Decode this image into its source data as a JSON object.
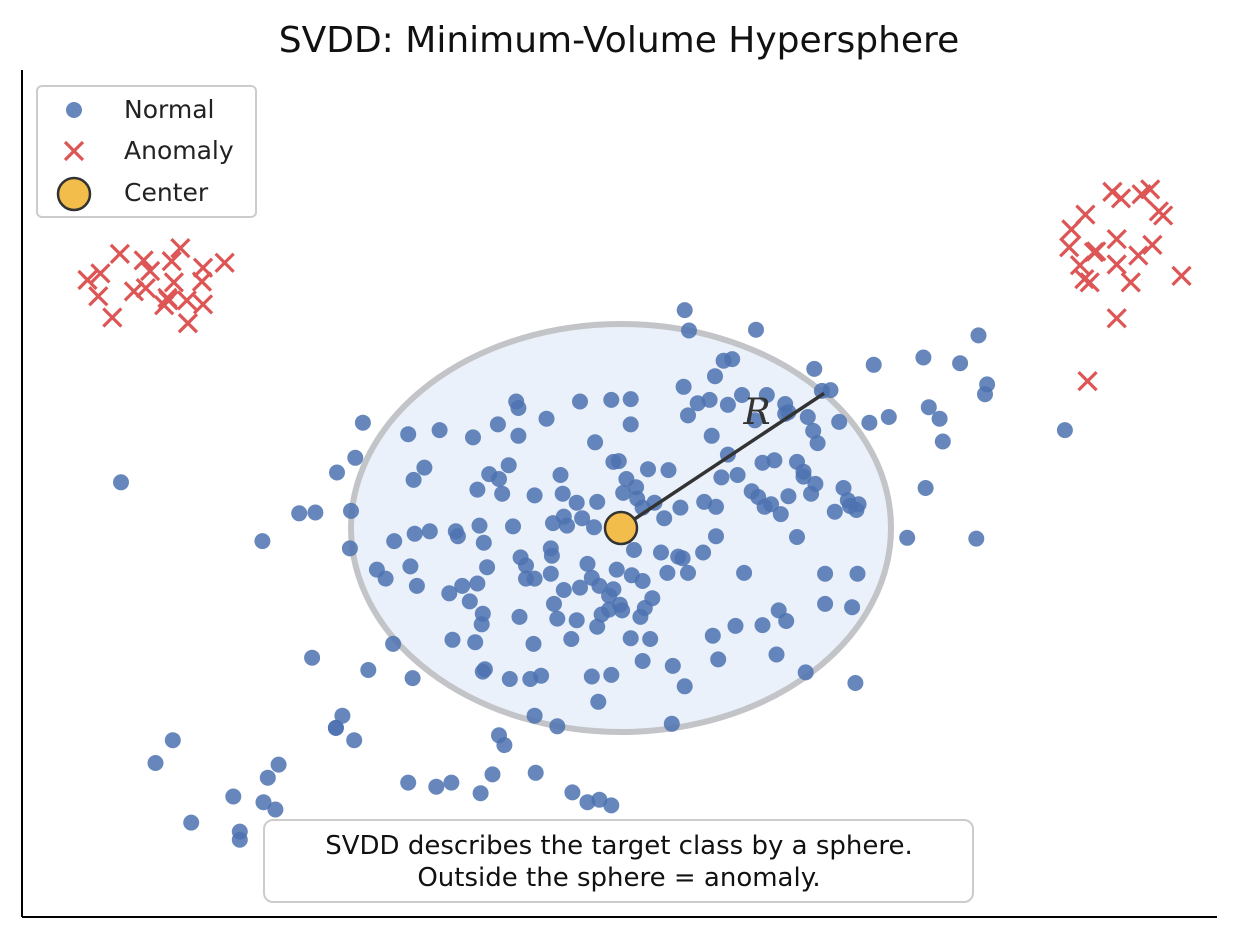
{
  "chart_data": {
    "type": "scatter",
    "title": "SVDD: Minimum-Volume Hypersphere",
    "xlabel": "",
    "ylabel": "",
    "xlim": [
      -5.5,
      5.5
    ],
    "ylim": [
      -5.5,
      5.5
    ],
    "axes_ticks": "none",
    "grid": false,
    "legend_position": "top-left",
    "colors": {
      "normal": "#4c72b0",
      "anomaly": "#dd5555",
      "center": "#f2bd4a",
      "sphere_fill": "#eaf1fa",
      "sphere_edge": "#c2c4c7",
      "radius": "#333333"
    },
    "legend": [
      {
        "label": "Normal",
        "marker": "circle",
        "series": "normal"
      },
      {
        "label": "Anomaly",
        "marker": "x",
        "series": "anomaly"
      },
      {
        "label": "Center",
        "marker": "big-circle",
        "series": "center"
      }
    ],
    "center": [
      0.0,
      0.0
    ],
    "radius": 2.5,
    "radius_label": "R",
    "radius_end": [
      1.88,
      1.65
    ],
    "note_lines": [
      "SVDD describes the target class by a sphere.",
      "Outside the sphere = anomaly."
    ],
    "series": [
      {
        "name": "Normal",
        "points": [
          [
            0.59,
            2.67
          ],
          [
            1.25,
            2.43
          ],
          [
            2.34,
            2.0
          ],
          [
            1.79,
            1.95
          ],
          [
            0.58,
            1.73
          ],
          [
            0.87,
            1.86
          ],
          [
            -0.97,
            1.55
          ],
          [
            -0.69,
            1.34
          ],
          [
            -0.09,
            1.57
          ],
          [
            -0.38,
            1.55
          ],
          [
            0.09,
            1.58
          ],
          [
            0.09,
            1.27
          ],
          [
            -0.95,
            1.13
          ],
          [
            -0.24,
            1.05
          ],
          [
            -1.04,
            0.77
          ],
          [
            -1.22,
            0.66
          ],
          [
            -0.56,
            0.65
          ],
          [
            0.05,
            0.6
          ],
          [
            -0.07,
            0.81
          ],
          [
            -0.02,
            0.82
          ],
          [
            0.25,
            0.72
          ],
          [
            0.44,
            0.71
          ],
          [
            -1.13,
            0.6
          ],
          [
            -1.33,
            0.47
          ],
          [
            -1.1,
            0.42
          ],
          [
            -0.8,
            0.4
          ],
          [
            -0.54,
            0.42
          ],
          [
            -0.41,
            0.31
          ],
          [
            -0.22,
            0.32
          ],
          [
            0.02,
            0.43
          ],
          [
            0.14,
            0.5
          ],
          [
            0.15,
            0.36
          ],
          [
            0.31,
            0.31
          ],
          [
            0.55,
            0.25
          ],
          [
            0.77,
            0.32
          ],
          [
            0.88,
            0.26
          ],
          [
            -0.5,
            0.03
          ],
          [
            -0.63,
            0.06
          ],
          [
            -0.53,
            0.14
          ],
          [
            -0.36,
            0.12
          ],
          [
            -0.25,
            0.01
          ],
          [
            -0.06,
            0.04
          ],
          [
            0.2,
            0.25
          ],
          [
            0.4,
            0.12
          ],
          [
            -1.0,
            0.02
          ],
          [
            -1.31,
            0.03
          ],
          [
            -1.53,
            -0.04
          ],
          [
            -1.77,
            -0.04
          ],
          [
            -1.91,
            -0.07
          ],
          [
            -2.1,
            -0.16
          ],
          [
            -0.88,
            -0.46
          ],
          [
            -1.24,
            -0.48
          ],
          [
            -1.51,
            -0.1
          ],
          [
            -1.27,
            -0.18
          ],
          [
            -0.93,
            -0.36
          ],
          [
            -0.64,
            -0.34
          ],
          [
            -0.65,
            -0.25
          ],
          [
            -0.31,
            -0.44
          ],
          [
            -0.27,
            -0.61
          ],
          [
            -0.2,
            -0.71
          ],
          [
            0.2,
            -0.65
          ],
          [
            0.12,
            -0.27
          ],
          [
            0.37,
            -0.3
          ],
          [
            0.53,
            -0.35
          ],
          [
            -0.65,
            -0.56
          ],
          [
            -0.88,
            -0.62
          ],
          [
            -0.8,
            -0.62
          ],
          [
            -0.62,
            -0.93
          ],
          [
            -0.53,
            -0.76
          ],
          [
            -0.38,
            -0.73
          ],
          [
            -0.07,
            -0.75
          ],
          [
            -0.11,
            -0.83
          ],
          [
            0.1,
            -0.58
          ],
          [
            0.29,
            -0.86
          ],
          [
            0.22,
            -0.98
          ],
          [
            0.18,
            -1.09
          ],
          [
            -0.01,
            -0.94
          ],
          [
            0.27,
            -1.36
          ],
          [
            0.09,
            -1.35
          ],
          [
            -0.41,
            -1.13
          ],
          [
            -0.59,
            -1.11
          ],
          [
            -0.11,
            -1.0
          ],
          [
            -0.18,
            -1.06
          ],
          [
            0.01,
            -1.01
          ],
          [
            -0.22,
            -1.21
          ],
          [
            -0.04,
            -0.51
          ],
          [
            0.43,
            -0.55
          ],
          [
            0.62,
            -0.55
          ],
          [
            0.57,
            -0.37
          ],
          [
            0.76,
            -0.3
          ],
          [
            0.88,
            -0.1
          ],
          [
            -1.33,
            -0.68
          ],
          [
            -1.47,
            -0.71
          ],
          [
            -1.95,
            -0.47
          ],
          [
            -1.89,
            -0.71
          ],
          [
            -2.26,
            -0.51
          ],
          [
            -2.18,
            -0.62
          ],
          [
            -1.59,
            -0.8
          ],
          [
            -1.28,
            -1.05
          ],
          [
            -1.29,
            -1.18
          ],
          [
            -0.94,
            -1.09
          ],
          [
            -0.46,
            -1.36
          ],
          [
            -0.81,
            -1.42
          ],
          [
            -1.35,
            -1.4
          ],
          [
            -1.56,
            -1.37
          ],
          [
            -1.4,
            -0.9
          ],
          [
            -2.11,
            -1.42
          ],
          [
            -1.26,
            -1.73
          ],
          [
            -1.28,
            -1.76
          ],
          [
            -1.93,
            -1.84
          ],
          [
            -1.03,
            -1.85
          ],
          [
            -0.74,
            -1.81
          ],
          [
            -0.84,
            -1.85
          ],
          [
            -0.09,
            -1.8
          ],
          [
            -0.27,
            -1.82
          ],
          [
            0.59,
            -1.94
          ],
          [
            1.31,
            -1.19
          ],
          [
            1.53,
            -1.14
          ],
          [
            1.89,
            -0.93
          ],
          [
            2.14,
            -0.97
          ],
          [
            1.46,
            -1.01
          ],
          [
            1.89,
            -0.56
          ],
          [
            2.19,
            -0.56
          ],
          [
            1.14,
            -0.55
          ],
          [
            1.06,
            -1.2
          ],
          [
            1.44,
            -1.55
          ],
          [
            1.71,
            -1.77
          ],
          [
            2.17,
            -1.9
          ],
          [
            -2.34,
            -1.74
          ],
          [
            -2.64,
            -2.45
          ],
          [
            -3.17,
            -2.9
          ],
          [
            -2.64,
            -2.45
          ],
          [
            -0.8,
            -2.3
          ],
          [
            -1.13,
            -2.54
          ],
          [
            -1.08,
            -2.66
          ],
          [
            -1.19,
            -3.02
          ],
          [
            -0.45,
            -3.24
          ],
          [
            -0.31,
            -3.36
          ],
          [
            -0.2,
            -3.33
          ],
          [
            -0.09,
            -3.4
          ],
          [
            -0.79,
            -3.0
          ],
          [
            -1.3,
            -3.25
          ],
          [
            -1.57,
            -3.12
          ],
          [
            -1.71,
            -3.17
          ],
          [
            -1.97,
            -3.12
          ],
          [
            -2.58,
            -2.3
          ],
          [
            -2.86,
            -1.59
          ],
          [
            -3.32,
            -0.16
          ],
          [
            -2.98,
            0.18
          ],
          [
            -2.83,
            0.19
          ],
          [
            -2.46,
            0.86
          ],
          [
            -2.5,
            0.21
          ],
          [
            -2.51,
            -0.25
          ],
          [
            -2.39,
            1.29
          ],
          [
            -1.97,
            1.15
          ],
          [
            -1.68,
            1.2
          ],
          [
            -1.14,
            1.27
          ],
          [
            -0.95,
            1.47
          ],
          [
            -1.37,
            1.11
          ],
          [
            -1.82,
            0.74
          ],
          [
            -1.92,
            0.59
          ],
          [
            -2.63,
            0.68
          ],
          [
            0.71,
            1.53
          ],
          [
            0.82,
            1.57
          ],
          [
            1.12,
            1.63
          ],
          [
            1.24,
            1.32
          ],
          [
            1.55,
            1.42
          ],
          [
            1.86,
            1.68
          ],
          [
            2.02,
            1.3
          ],
          [
            1.82,
            1.04
          ],
          [
            1.69,
            0.63
          ],
          [
            1.63,
            0.81
          ],
          [
            1.35,
            1.63
          ],
          [
            0.99,
            1.51
          ],
          [
            0.84,
            1.13
          ],
          [
            0.62,
            1.38
          ],
          [
            0.99,
            0.9
          ],
          [
            1.27,
            0.38
          ],
          [
            1.39,
            0.29
          ],
          [
            1.55,
            0.39
          ],
          [
            1.33,
            0.26
          ],
          [
            1.48,
            0.17
          ],
          [
            0.93,
            0.62
          ],
          [
            1.08,
            0.65
          ],
          [
            1.21,
            0.45
          ],
          [
            1.42,
            0.83
          ],
          [
            2.1,
            0.34
          ],
          [
            2.2,
            0.29
          ],
          [
            2.12,
            0.27
          ],
          [
            2.06,
            0.49
          ],
          [
            1.69,
            0.69
          ],
          [
            1.8,
            0.54
          ],
          [
            1.63,
            -0.11
          ],
          [
            1.98,
            0.2
          ],
          [
            2.18,
            0.22
          ],
          [
            1.76,
            0.42
          ],
          [
            1.31,
            0.8
          ],
          [
            1.52,
            1.4
          ],
          [
            0.95,
            2.05
          ],
          [
            0.63,
            2.42
          ],
          [
            1.03,
            2.07
          ],
          [
            1.94,
            1.69
          ],
          [
            2.3,
            1.29
          ],
          [
            2.95,
            1.34
          ],
          [
            2.82,
            0.49
          ],
          [
            3.29,
            -0.13
          ],
          [
            2.65,
            -0.12
          ],
          [
            2.98,
            1.06
          ],
          [
            3.39,
            1.76
          ],
          [
            3.31,
            2.36
          ],
          [
            4.11,
            1.2
          ],
          [
            3.37,
            1.64
          ],
          [
            3.14,
            2.02
          ],
          [
            2.8,
            2.09
          ],
          [
            2.85,
            1.48
          ],
          [
            2.48,
            1.36
          ],
          [
            -4.31,
            -2.88
          ],
          [
            -4.63,
            0.56
          ],
          [
            -4.15,
            -2.6
          ],
          [
            -2.47,
            -2.6
          ],
          [
            -3.27,
            -3.06
          ],
          [
            -3.59,
            -3.29
          ],
          [
            -3.98,
            -3.61
          ],
          [
            -3.53,
            -3.82
          ],
          [
            -3.53,
            -3.72
          ],
          [
            -3.31,
            -3.36
          ],
          [
            -3.2,
            -3.45
          ],
          [
            0.9,
            -1.61
          ],
          [
            0.85,
            -1.32
          ],
          [
            0.48,
            -1.69
          ],
          [
            0.2,
            -1.63
          ],
          [
            -0.21,
            -2.13
          ],
          [
            -0.59,
            -2.43
          ],
          [
            0.47,
            -2.4
          ],
          [
            1.52,
            1.52
          ],
          [
            1.73,
            1.36
          ],
          [
            1.78,
            1.19
          ]
        ]
      },
      {
        "name": "Anomaly",
        "points": [
          [
            -4.4,
            2.94
          ],
          [
            -4.16,
            3.27
          ],
          [
            -4.08,
            3.43
          ],
          [
            -4.14,
            3.01
          ],
          [
            -3.87,
            3.19
          ],
          [
            -4.64,
            3.36
          ],
          [
            -4.94,
            3.04
          ],
          [
            -4.82,
            3.12
          ],
          [
            -4.36,
            3.15
          ],
          [
            -3.87,
            2.74
          ],
          [
            -4.23,
            2.73
          ],
          [
            -4.19,
            2.79
          ],
          [
            -4.02,
            2.79
          ],
          [
            -4.71,
            2.58
          ],
          [
            -4.2,
            2.82
          ],
          [
            -4.84,
            2.84
          ],
          [
            -3.88,
            3.02
          ],
          [
            -3.67,
            3.25
          ],
          [
            -4.01,
            2.51
          ],
          [
            -4.42,
            3.28
          ],
          [
            -4.51,
            2.9
          ],
          [
            4.3,
            3.84
          ],
          [
            4.38,
            3.38
          ],
          [
            4.17,
            3.66
          ],
          [
            4.34,
            3.01
          ],
          [
            4.59,
            3.54
          ],
          [
            4.59,
            3.23
          ],
          [
            4.79,
            3.34
          ],
          [
            4.4,
            3.39
          ],
          [
            4.72,
            3.01
          ],
          [
            4.92,
            3.47
          ],
          [
            5.19,
            3.09
          ],
          [
            4.59,
            2.57
          ],
          [
            5.02,
            3.83
          ],
          [
            4.82,
            4.09
          ],
          [
            4.55,
            4.12
          ],
          [
            4.9,
            4.15
          ],
          [
            4.63,
            4.04
          ],
          [
            4.98,
            3.88
          ],
          [
            4.29,
            3.05
          ],
          [
            4.15,
            3.44
          ],
          [
            4.25,
            3.22
          ],
          [
            4.32,
            1.8
          ]
        ]
      }
    ]
  }
}
